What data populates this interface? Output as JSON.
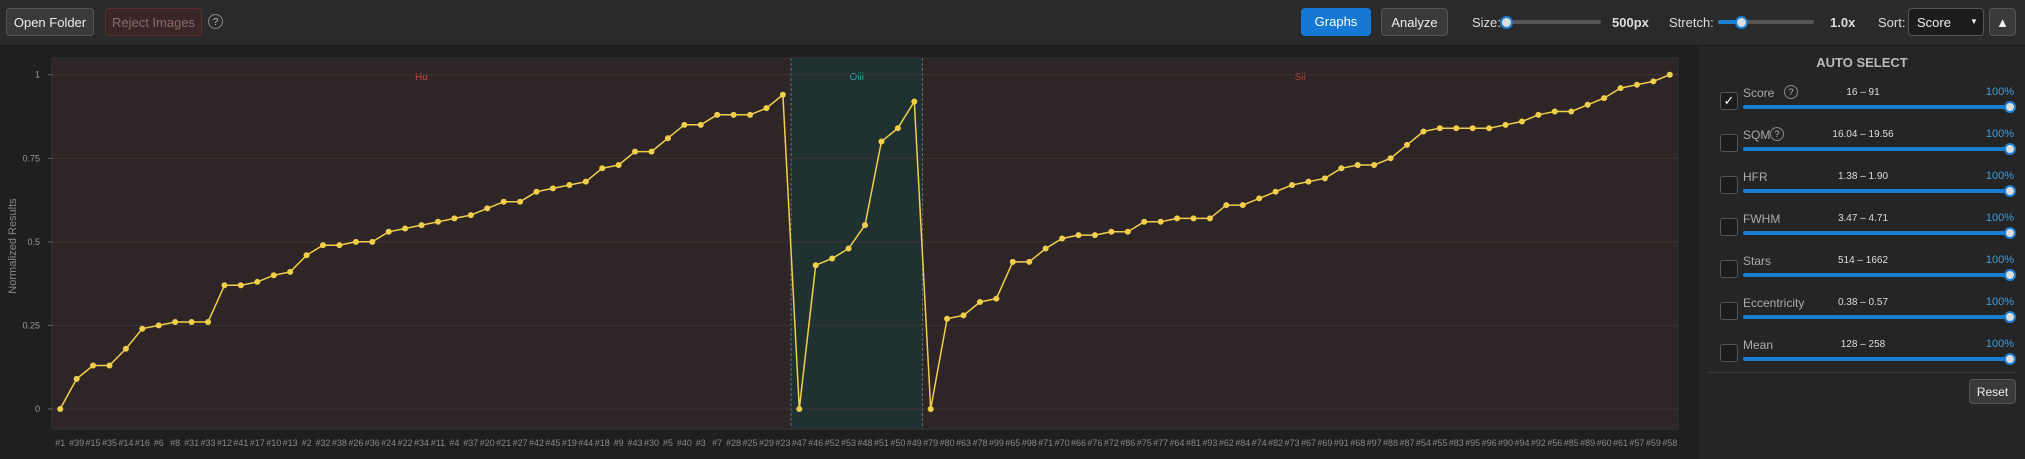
{
  "toolbar": {
    "open_folder": "Open Folder",
    "reject_images": "Reject Images",
    "help": "?",
    "graphs": "Graphs",
    "analyze": "Analyze",
    "size_label": "Size:",
    "size_value": "500px",
    "stretch_label": "Stretch:",
    "stretch_value": "1.0x",
    "sort_label": "Sort:",
    "sort_value": "Score",
    "sort_dir": "▲"
  },
  "chart_data": {
    "type": "line",
    "y_label": "Normalized Results",
    "color": "#f2cf4a",
    "ylim": [
      -0.06,
      1.05
    ],
    "yticks": [
      0,
      0.25,
      0.5,
      0.75,
      1
    ],
    "grid": true,
    "groups": [
      {
        "name": "Hα",
        "color": "#d9413f",
        "fill": "#2e2526",
        "categories": [
          "#1",
          "#39",
          "#15",
          "#35",
          "#14",
          "#16",
          "#6",
          "#8",
          "#31",
          "#33",
          "#12",
          "#41",
          "#17",
          "#10",
          "#13",
          "#2",
          "#32",
          "#38",
          "#26",
          "#36",
          "#24",
          "#22",
          "#34",
          "#11",
          "#4",
          "#37",
          "#20",
          "#21",
          "#27",
          "#42",
          "#45",
          "#19",
          "#44",
          "#18",
          "#9",
          "#43",
          "#30",
          "#5",
          "#40",
          "#3",
          "#7",
          "#28",
          "#25",
          "#29",
          "#23"
        ],
        "values": [
          0,
          0.09,
          0.13,
          0.13,
          0.18,
          0.24,
          0.25,
          0.26,
          0.26,
          0.26,
          0.37,
          0.37,
          0.38,
          0.4,
          0.41,
          0.46,
          0.49,
          0.49,
          0.5,
          0.5,
          0.53,
          0.54,
          0.55,
          0.56,
          0.57,
          0.58,
          0.6,
          0.62,
          0.62,
          0.65,
          0.66,
          0.67,
          0.68,
          0.72,
          0.73,
          0.77,
          0.77,
          0.81,
          0.85,
          0.85,
          0.88,
          0.88,
          0.88,
          0.9,
          0.94
        ]
      },
      {
        "name": "Oiii",
        "color": "#2aa8a8",
        "fill": "#1f3231",
        "categories": [
          "#47",
          "#46",
          "#52",
          "#53",
          "#48",
          "#51",
          "#50",
          "#49"
        ],
        "values": [
          0,
          0.43,
          0.45,
          0.48,
          0.55,
          0.8,
          0.84,
          0.92
        ]
      },
      {
        "name": "Sii",
        "color": "#a8403c",
        "fill": "#2e2526",
        "categories": [
          "#79",
          "#80",
          "#63",
          "#78",
          "#99",
          "#65",
          "#98",
          "#71",
          "#70",
          "#66",
          "#76",
          "#72",
          "#86",
          "#75",
          "#77",
          "#64",
          "#81",
          "#93",
          "#62",
          "#84",
          "#74",
          "#82",
          "#73",
          "#67",
          "#69",
          "#91",
          "#68",
          "#97",
          "#88",
          "#87",
          "#54",
          "#55",
          "#83",
          "#95",
          "#96",
          "#90",
          "#94",
          "#92",
          "#56",
          "#85",
          "#89",
          "#60",
          "#61",
          "#57",
          "#59",
          "#58"
        ],
        "values": [
          0,
          0.27,
          0.28,
          0.32,
          0.33,
          0.44,
          0.44,
          0.48,
          0.51,
          0.52,
          0.52,
          0.53,
          0.53,
          0.56,
          0.56,
          0.57,
          0.57,
          0.57,
          0.61,
          0.61,
          0.63,
          0.65,
          0.67,
          0.68,
          0.69,
          0.72,
          0.73,
          0.73,
          0.75,
          0.79,
          0.83,
          0.84,
          0.84,
          0.84,
          0.84,
          0.85,
          0.86,
          0.88,
          0.89,
          0.89,
          0.91,
          0.93,
          0.96,
          0.97,
          0.98,
          1.0
        ]
      }
    ]
  },
  "panel": {
    "title": "AUTO SELECT",
    "help": "?",
    "reset": "Reset",
    "items": [
      {
        "label": "Score",
        "range": "16 – 91",
        "percent": "100%",
        "checked": true,
        "help": true
      },
      {
        "label": "SQM",
        "range": "16.04 – 19.56",
        "percent": "100%",
        "checked": false,
        "help": true
      },
      {
        "label": "HFR",
        "range": "1.38 – 1.90",
        "percent": "100%",
        "checked": false,
        "help": false
      },
      {
        "label": "FWHM",
        "range": "3.47 – 4.71",
        "percent": "100%",
        "checked": false,
        "help": false
      },
      {
        "label": "Stars",
        "range": "514 – 1662",
        "percent": "100%",
        "checked": false,
        "help": false
      },
      {
        "label": "Eccentricity",
        "range": "0.38 – 0.57",
        "percent": "100%",
        "checked": false,
        "help": false
      },
      {
        "label": "Mean",
        "range": "128 – 258",
        "percent": "100%",
        "checked": false,
        "help": false
      }
    ]
  }
}
